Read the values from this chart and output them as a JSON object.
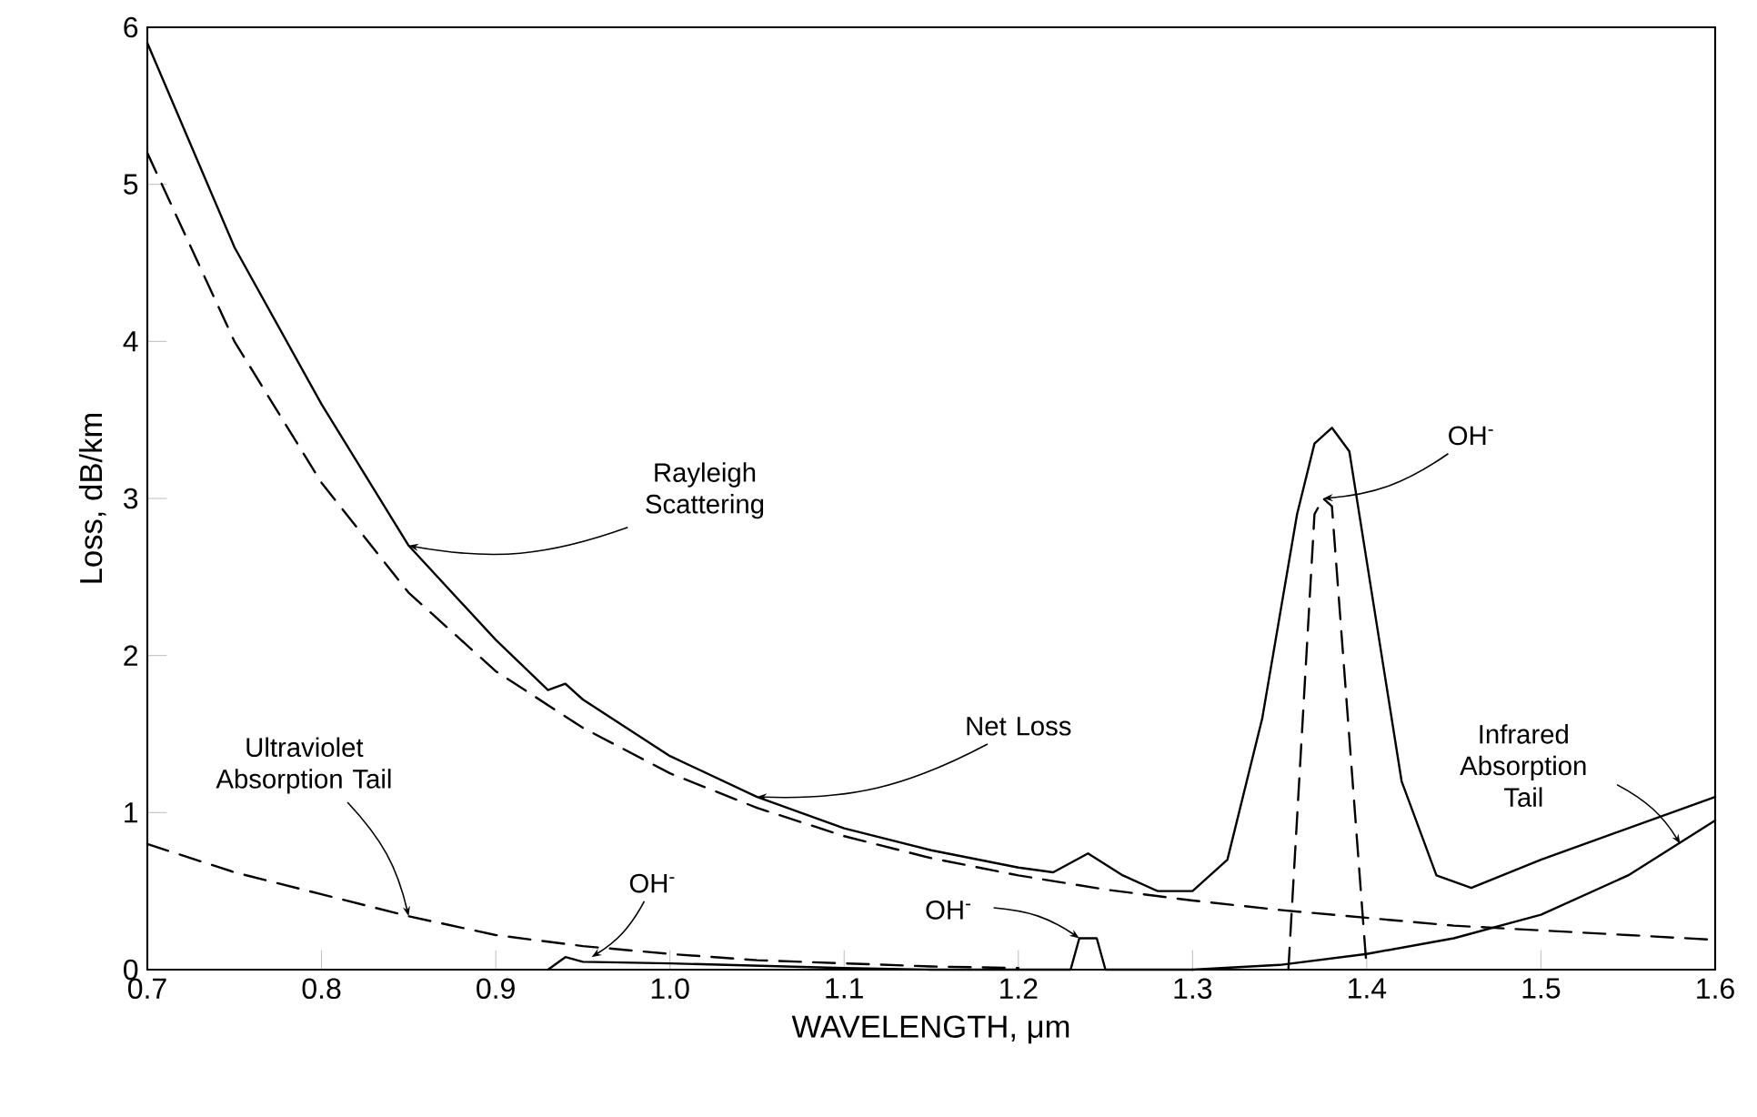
{
  "chart_data": {
    "type": "line",
    "xlabel": "WAVELENGTH, μm",
    "ylabel": "Loss, dB/km",
    "xlim": [
      0.7,
      1.6
    ],
    "ylim": [
      0,
      6
    ],
    "xticks": [
      {
        "value": 0.7,
        "label": "0.7"
      },
      {
        "value": 0.8,
        "label": "0.8"
      },
      {
        "value": 0.9,
        "label": "0.9"
      },
      {
        "value": 1.0,
        "label": "1.0"
      },
      {
        "value": 1.1,
        "label": "1.1"
      },
      {
        "value": 1.2,
        "label": "1.2"
      },
      {
        "value": 1.3,
        "label": "1.3"
      },
      {
        "value": 1.4,
        "label": "1.4"
      },
      {
        "value": 1.5,
        "label": "1.5"
      },
      {
        "value": 1.6,
        "label": "1.6"
      }
    ],
    "yticks": [
      0,
      1,
      2,
      3,
      4,
      5,
      6
    ],
    "grid": false,
    "marker": "none",
    "series": [
      {
        "color": "#000000",
        "line_style": "solid",
        "x": [
          0.7,
          0.75,
          0.8,
          0.85,
          0.9,
          0.93,
          0.94,
          0.95,
          1.0,
          1.05,
          1.1,
          1.15,
          1.2,
          1.22,
          1.24,
          1.26,
          1.28,
          1.3,
          1.32,
          1.34,
          1.36,
          1.37,
          1.38,
          1.39,
          1.4,
          1.42,
          1.44,
          1.46,
          1.5,
          1.55,
          1.6
        ],
        "values": [
          5.9,
          4.6,
          3.6,
          2.7,
          2.1,
          1.78,
          1.82,
          1.72,
          1.36,
          1.1,
          0.9,
          0.76,
          0.65,
          0.62,
          0.74,
          0.6,
          0.5,
          0.5,
          0.7,
          1.6,
          2.9,
          3.35,
          3.45,
          3.3,
          2.6,
          1.2,
          0.6,
          0.52,
          0.7,
          0.9,
          1.1
        ]
      },
      {
        "color": "#000000",
        "line_style": "dashed",
        "x": [
          0.7,
          0.75,
          0.8,
          0.85,
          0.9,
          0.95,
          1.0,
          1.05,
          1.1,
          1.15,
          1.2,
          1.25,
          1.3,
          1.35,
          1.4,
          1.45,
          1.5,
          1.55,
          1.6
        ],
        "values": [
          5.2,
          4.0,
          3.1,
          2.4,
          1.9,
          1.54,
          1.25,
          1.03,
          0.85,
          0.71,
          0.6,
          0.51,
          0.44,
          0.38,
          0.33,
          0.28,
          0.25,
          0.22,
          0.19
        ]
      },
      {
        "color": "#000000",
        "line_style": "dashed",
        "x": [
          0.7,
          0.75,
          0.8,
          0.85,
          0.9,
          0.95,
          1.0,
          1.05,
          1.1,
          1.15,
          1.2
        ],
        "values": [
          0.8,
          0.62,
          0.48,
          0.34,
          0.22,
          0.15,
          0.1,
          0.06,
          0.04,
          0.02,
          0.01
        ]
      },
      {
        "color": "#000000",
        "line_style": "solid",
        "x": [
          1.3,
          1.35,
          1.4,
          1.45,
          1.5,
          1.55,
          1.6
        ],
        "values": [
          0,
          0.03,
          0.1,
          0.2,
          0.35,
          0.6,
          0.95
        ]
      },
      {
        "color": "#000000",
        "line_style": "solid",
        "x": [
          0.93,
          0.94,
          0.95,
          1.0,
          1.1,
          1.15,
          1.2,
          1.23,
          1.235,
          1.245,
          1.25,
          1.3
        ],
        "values": [
          0,
          0.08,
          0.05,
          0.04,
          0.01,
          0,
          0,
          0,
          0.2,
          0.2,
          0,
          0
        ]
      },
      {
        "color": "#000000",
        "line_style": "dashed",
        "x": [
          1.355,
          1.37,
          1.375,
          1.38,
          1.4
        ],
        "values": [
          0,
          2.9,
          3.0,
          2.95,
          0
        ]
      }
    ],
    "annotations": [
      {
        "text": "Rayleigh Scattering",
        "x": 0.85,
        "y": 2.7
      },
      {
        "text": "Net Loss",
        "x": 1.05,
        "y": 1.1
      },
      {
        "text": "Ultraviolet Absorption Tail",
        "x": 0.85,
        "y": 0.34
      },
      {
        "text": "Infrared Absorption Tail",
        "x": 1.58,
        "y": 0.8
      },
      {
        "text": "OH$^{-}$",
        "x": 1.375,
        "y": 3.0
      },
      {
        "text": "OH$^{-}$",
        "x": 0.955,
        "y": 0.08
      },
      {
        "text": "OH$^{-}$",
        "x": 1.235,
        "y": 0.2
      }
    ]
  }
}
